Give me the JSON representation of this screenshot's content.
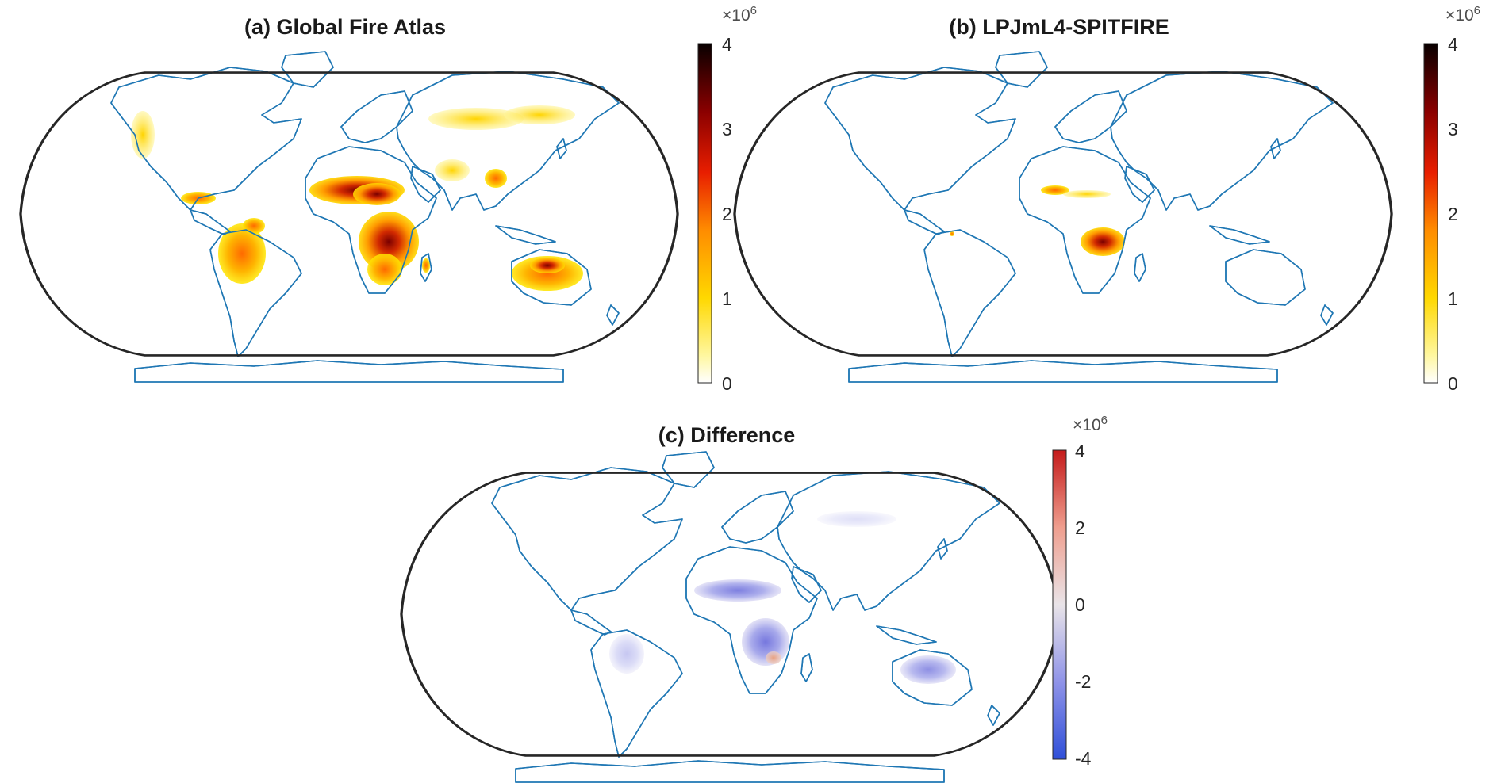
{
  "panels": [
    {
      "id": "a",
      "title": "(a) Global Fire Atlas",
      "colorbar": {
        "multiplier_base": "×10",
        "multiplier_exp": "6",
        "ticks": [
          "4",
          "3",
          "2",
          "1",
          "0"
        ],
        "cmap": "hot"
      },
      "fire_regions": [
        "north-america-west",
        "central-america",
        "south-america",
        "sahel-west-africa",
        "central-africa",
        "southern-africa",
        "madagascar",
        "siberia",
        "india",
        "southeast-asia",
        "northern-australia"
      ]
    },
    {
      "id": "b",
      "title": "(b) LPJmL4-SPITFIRE",
      "colorbar": {
        "multiplier_base": "×10",
        "multiplier_exp": "6",
        "ticks": [
          "4",
          "3",
          "2",
          "1",
          "0"
        ],
        "cmap": "hot"
      },
      "fire_regions": [
        "sahel-west-africa",
        "southern-africa",
        "brazil-small"
      ]
    },
    {
      "id": "c",
      "title": "(c) Difference",
      "colorbar": {
        "multiplier_base": "×10",
        "multiplier_exp": "6",
        "ticks": [
          "4",
          "2",
          "0",
          "-2",
          "-4"
        ],
        "cmap": "diverging-blue-red"
      },
      "fire_regions": [
        "sahel-west-africa",
        "central-africa",
        "southern-africa",
        "northern-australia",
        "south-america"
      ]
    }
  ],
  "colors": {
    "coastline": "#1f77b4",
    "frame": "#262626",
    "difference_land": "#e9e4e8"
  }
}
